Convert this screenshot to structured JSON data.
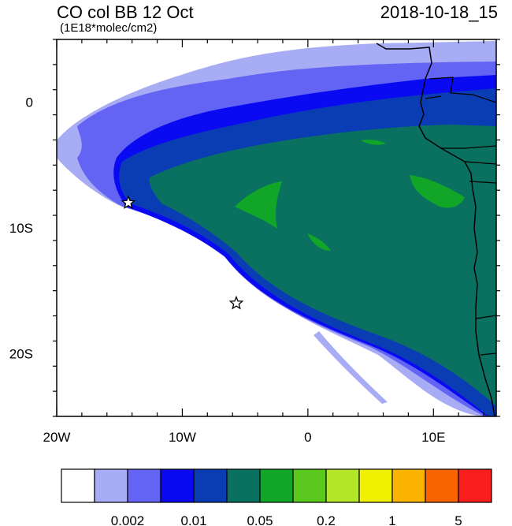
{
  "title": {
    "left": "CO col BB 12 Oct",
    "units": "(1E18*molec/cm2)",
    "right": "2018-10-18_15"
  },
  "axes": {
    "lon_range": [
      -20,
      15
    ],
    "lat_range": [
      -25,
      5
    ],
    "x_tick_labels": [
      {
        "lon": -20,
        "label": "20W"
      },
      {
        "lon": -10,
        "label": "10W"
      },
      {
        "lon": 0,
        "label": "0"
      },
      {
        "lon": 10,
        "label": "10E"
      }
    ],
    "y_tick_labels": [
      {
        "lat": 0,
        "label": "0"
      },
      {
        "lat": -10,
        "label": "10S"
      },
      {
        "lat": -20,
        "label": "20S"
      }
    ]
  },
  "markers": [
    {
      "name": "star-1",
      "lon": -14.3,
      "lat": -8.0
    },
    {
      "name": "star-2",
      "lon": -5.7,
      "lat": -16.0
    }
  ],
  "colorbar": {
    "colors": [
      "#ffffff",
      "#a8acf4",
      "#6363f4",
      "#0a0af2",
      "#0a3cb4",
      "#0a7060",
      "#12a628",
      "#5ac81e",
      "#b4e628",
      "#f0f000",
      "#fab400",
      "#fa6400",
      "#fa1e1e"
    ],
    "labels": [
      {
        "after_box": 2,
        "text": "0.002"
      },
      {
        "after_box": 4,
        "text": "0.01"
      },
      {
        "after_box": 6,
        "text": "0.05"
      },
      {
        "after_box": 8,
        "text": "0.2"
      },
      {
        "after_box": 10,
        "text": "1"
      },
      {
        "after_box": 12,
        "text": "5"
      }
    ]
  }
}
